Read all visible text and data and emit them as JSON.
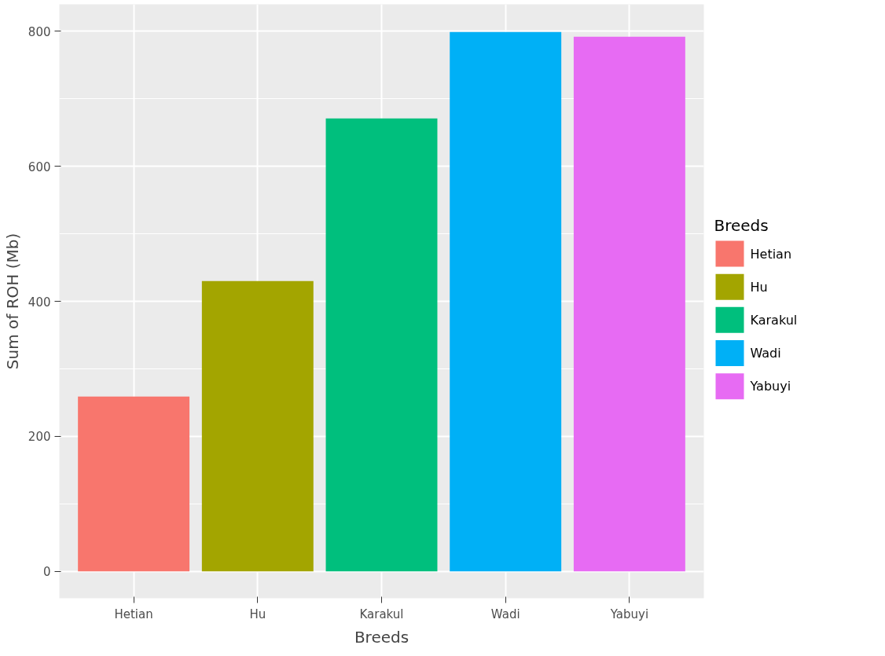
{
  "chart_data": {
    "type": "bar",
    "xlabel": "Breeds",
    "ylabel": "Sum of ROH (Mb)",
    "legend_title": "Breeds",
    "categories": [
      "Hetian",
      "Hu",
      "Karakul",
      "Wadi",
      "Yabuyi"
    ],
    "series": [
      {
        "name": "Hetian",
        "color": "#f8766d",
        "values": [
          259,
          null,
          null,
          null,
          null
        ]
      },
      {
        "name": "Hu",
        "color": "#a3a500",
        "values": [
          null,
          430,
          null,
          null,
          null
        ]
      },
      {
        "name": "Karakul",
        "color": "#00bf7d",
        "values": [
          null,
          null,
          671,
          null,
          null
        ]
      },
      {
        "name": "Wadi",
        "color": "#00b0f6",
        "values": [
          null,
          null,
          null,
          799,
          null
        ]
      },
      {
        "name": "Yabuyi",
        "color": "#e76bf3",
        "values": [
          null,
          null,
          null,
          null,
          792
        ]
      }
    ],
    "stacked": true,
    "ylim": [
      -40,
      840
    ],
    "yticks": [
      0,
      200,
      400,
      600,
      800
    ],
    "grid": true,
    "legend": "right"
  }
}
